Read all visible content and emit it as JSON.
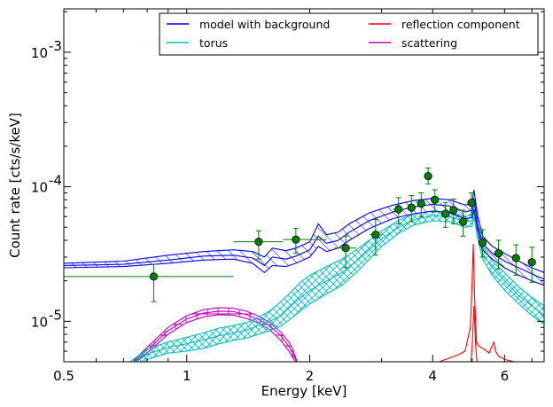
{
  "chart_data": {
    "type": "line",
    "xlabel": "Energy [keV]",
    "ylabel": "Count rate [cts/s/keV]",
    "xscale": "log",
    "yscale": "log",
    "xlim": [
      0.5,
      7.5
    ],
    "ylim": [
      5e-06,
      0.0021
    ],
    "x_ticks": [
      {
        "value": 0.5,
        "label": "0.5"
      },
      {
        "value": 1,
        "label": "1"
      },
      {
        "value": 2,
        "label": "2"
      },
      {
        "value": 4,
        "label": "4"
      },
      {
        "value": 6,
        "label": "6"
      }
    ],
    "y_ticks": [
      {
        "value": 1e-05,
        "base": "10",
        "exp": "-5"
      },
      {
        "value": 0.0001,
        "base": "10",
        "exp": "-4"
      },
      {
        "value": 0.001,
        "base": "10",
        "exp": "-3"
      }
    ],
    "legend": {
      "placement": "top-right",
      "columns": 2,
      "entries": [
        {
          "label": "model with background",
          "color": "#0000ff"
        },
        {
          "label": "reflection component",
          "color": "#ff0000"
        },
        {
          "label": "torus",
          "color": "#00bfbf"
        },
        {
          "label": "scattering",
          "color": "#bf00bf"
        }
      ]
    },
    "data_points": {
      "color": "#008000",
      "points": [
        {
          "x": 0.83,
          "xlo": 0.5,
          "xhi": 1.3,
          "y": 2.15e-05,
          "ylo": 1.4e-05,
          "yhi": 2.65e-05
        },
        {
          "x": 1.5,
          "xlo": 1.3,
          "xhi": 1.72,
          "y": 3.9e-05,
          "ylo": 2.9e-05,
          "yhi": 4.7e-05
        },
        {
          "x": 1.85,
          "xlo": 1.72,
          "xhi": 2.2,
          "y": 4.05e-05,
          "ylo": 3.2e-05,
          "yhi": 4.9e-05
        },
        {
          "x": 2.45,
          "xlo": 2.3,
          "xhi": 2.6,
          "y": 3.5e-05,
          "ylo": 2.5e-05,
          "yhi": 4.3e-05
        },
        {
          "x": 2.9,
          "xlo": 2.8,
          "xhi": 3.0,
          "y": 4.4e-05,
          "ylo": 3.1e-05,
          "yhi": 5.7e-05
        },
        {
          "x": 3.3,
          "xlo": 3.2,
          "xhi": 3.4,
          "y": 6.8e-05,
          "ylo": 5.3e-05,
          "yhi": 8.3e-05
        },
        {
          "x": 3.55,
          "xlo": 3.48,
          "xhi": 3.62,
          "y": 7e-05,
          "ylo": 5.5e-05,
          "yhi": 8.6e-05
        },
        {
          "x": 3.75,
          "xlo": 3.68,
          "xhi": 3.82,
          "y": 7.5e-05,
          "ylo": 6e-05,
          "yhi": 9e-05
        },
        {
          "x": 3.9,
          "xlo": 3.85,
          "xhi": 3.95,
          "y": 0.00012,
          "ylo": 0.000105,
          "yhi": 0.000138
        },
        {
          "x": 4.05,
          "xlo": 4.0,
          "xhi": 4.1,
          "y": 8e-05,
          "ylo": 6.5e-05,
          "yhi": 9.5e-05
        },
        {
          "x": 4.3,
          "xlo": 4.2,
          "xhi": 4.4,
          "y": 6.3e-05,
          "ylo": 5e-05,
          "yhi": 7.6e-05
        },
        {
          "x": 4.5,
          "xlo": 4.45,
          "xhi": 4.55,
          "y": 6.7e-05,
          "ylo": 5.3e-05,
          "yhi": 8.1e-05
        },
        {
          "x": 4.75,
          "xlo": 4.68,
          "xhi": 4.82,
          "y": 5.5e-05,
          "ylo": 4.3e-05,
          "yhi": 6.7e-05
        },
        {
          "x": 4.98,
          "xlo": 4.93,
          "xhi": 5.03,
          "y": 7.6e-05,
          "ylo": 6.2e-05,
          "yhi": 9e-05
        },
        {
          "x": 5.3,
          "xlo": 5.2,
          "xhi": 5.4,
          "y": 3.85e-05,
          "ylo": 3e-05,
          "yhi": 4.8e-05
        },
        {
          "x": 5.8,
          "xlo": 5.65,
          "xhi": 5.95,
          "y": 3.2e-05,
          "ylo": 2.45e-05,
          "yhi": 4e-05
        },
        {
          "x": 6.4,
          "xlo": 6.25,
          "xhi": 6.55,
          "y": 2.95e-05,
          "ylo": 2.2e-05,
          "yhi": 3.7e-05
        },
        {
          "x": 7.0,
          "xlo": 6.85,
          "xhi": 7.15,
          "y": 2.75e-05,
          "ylo": 1.95e-05,
          "yhi": 3.55e-05
        }
      ]
    },
    "series": [
      {
        "name": "model with background",
        "color": "#0000ff",
        "band": true,
        "x": [
          0.5,
          0.7,
          0.9,
          1.1,
          1.3,
          1.45,
          1.55,
          1.62,
          1.75,
          1.85,
          2.0,
          2.1,
          2.2,
          2.35,
          2.5,
          2.8,
          3.2,
          3.6,
          4.0,
          4.4,
          4.8,
          5.0,
          5.05,
          5.15,
          5.3,
          5.6,
          6.0,
          6.5,
          7.0,
          7.5
        ],
        "y_lo": [
          2.5e-05,
          2.55e-05,
          2.7e-05,
          2.85e-05,
          2.9e-05,
          2.7e-05,
          2.3e-05,
          2.6e-05,
          2.55e-05,
          2.7e-05,
          3e-05,
          3.6e-05,
          3.3e-05,
          3.5e-05,
          4e-05,
          4.9e-05,
          5.8e-05,
          6.3e-05,
          6.6e-05,
          6.4e-05,
          5.8e-05,
          5.9e-05,
          6.8e-05,
          4.8e-05,
          3.4e-05,
          2.9e-05,
          2.5e-05,
          2.2e-05,
          2e-05,
          1.85e-05
        ],
        "y_mid": [
          2.6e-05,
          2.65e-05,
          2.85e-05,
          3.05e-05,
          3.1e-05,
          2.95e-05,
          2.6e-05,
          3e-05,
          2.9e-05,
          3.05e-05,
          3.4e-05,
          4.3e-05,
          3.8e-05,
          4e-05,
          4.6e-05,
          5.6e-05,
          6.5e-05,
          7.1e-05,
          7.4e-05,
          7.2e-05,
          6.5e-05,
          6.7e-05,
          8.2e-05,
          5.4e-05,
          3.8e-05,
          3.2e-05,
          2.8e-05,
          2.5e-05,
          2.25e-05,
          2.05e-05
        ],
        "y_hi": [
          2.7e-05,
          2.8e-05,
          3.1e-05,
          3.3e-05,
          3.4e-05,
          3.3e-05,
          3e-05,
          3.5e-05,
          3.35e-05,
          3.5e-05,
          3.9e-05,
          5.3e-05,
          4.4e-05,
          4.6e-05,
          5.3e-05,
          6.4e-05,
          7.3e-05,
          7.9e-05,
          8.2e-05,
          8e-05,
          7.3e-05,
          7.6e-05,
          9.5e-05,
          6.2e-05,
          4.3e-05,
          3.6e-05,
          3.2e-05,
          2.8e-05,
          2.5e-05,
          2.3e-05
        ]
      },
      {
        "name": "torus",
        "color": "#00bfbf",
        "band": true,
        "x": [
          0.7,
          0.8,
          0.9,
          1.0,
          1.1,
          1.2,
          1.3,
          1.4,
          1.5,
          1.6,
          1.7,
          1.8,
          1.9,
          2.0,
          2.2,
          2.4,
          2.6,
          2.8,
          3.0,
          3.3,
          3.6,
          4.0,
          4.4,
          4.8,
          5.0,
          5.05,
          5.15,
          5.3,
          5.6,
          6.0,
          6.5,
          7.0,
          7.5
        ],
        "y_lo": [
          4e-06,
          5.2e-06,
          5.8e-06,
          6e-06,
          6.3e-06,
          6.8e-06,
          7.2e-06,
          7.5e-06,
          8e-06,
          8.5e-06,
          9.2e-06,
          1.05e-05,
          1.2e-05,
          1.35e-05,
          1.6e-05,
          1.85e-05,
          2.3e-05,
          2.9e-05,
          3.6e-05,
          4.5e-05,
          5.2e-05,
          5.6e-05,
          5.5e-05,
          5e-05,
          5.1e-05,
          6e-05,
          4.2e-05,
          2.9e-05,
          2.2e-05,
          1.7e-05,
          1.35e-05,
          1.1e-05,
          9.5e-06
        ],
        "y_mid": [
          4.3e-06,
          5.7e-06,
          6.4e-06,
          6.8e-06,
          7.3e-06,
          7.8e-06,
          8.2e-06,
          8.6e-06,
          9.3e-06,
          1e-05,
          1.1e-05,
          1.3e-05,
          1.5e-05,
          1.7e-05,
          2e-05,
          2.3e-05,
          2.8e-05,
          3.4e-05,
          4.1e-05,
          5e-05,
          5.7e-05,
          6.1e-05,
          6e-05,
          5.5e-05,
          5.6e-05,
          6.7e-05,
          4.7e-05,
          3.2e-05,
          2.5e-05,
          2e-05,
          1.55e-05,
          1.3e-05,
          1.1e-05
        ],
        "y_hi": [
          4.6e-06,
          6.2e-06,
          7e-06,
          7.6e-06,
          8.2e-06,
          8.9e-06,
          9.3e-06,
          9.8e-06,
          1.07e-05,
          1.2e-05,
          1.4e-05,
          1.65e-05,
          1.95e-05,
          2.2e-05,
          2.55e-05,
          2.9e-05,
          3.4e-05,
          4e-05,
          4.7e-05,
          5.6e-05,
          6.3e-05,
          6.6e-05,
          6.5e-05,
          6e-05,
          6.2e-05,
          7.5e-05,
          5.2e-05,
          3.6e-05,
          2.8e-05,
          2.3e-05,
          1.8e-05,
          1.5e-05,
          1.3e-05
        ]
      },
      {
        "name": "scattering",
        "color": "#bf00bf",
        "band": true,
        "x": [
          0.74,
          0.8,
          0.9,
          1.0,
          1.1,
          1.2,
          1.3,
          1.4,
          1.5,
          1.6,
          1.7,
          1.78,
          1.82,
          1.86
        ],
        "y_lo": [
          4.9e-06,
          5.8e-06,
          8e-06,
          9.8e-06,
          1.08e-05,
          1.12e-05,
          1.11e-05,
          1.05e-05,
          9.7e-06,
          8.6e-06,
          7.2e-06,
          6e-06,
          5.3e-06,
          4.9e-06
        ],
        "y_mid": [
          5e-06,
          6.1e-06,
          8.5e-06,
          1.04e-05,
          1.15e-05,
          1.19e-05,
          1.18e-05,
          1.12e-05,
          1.03e-05,
          9.2e-06,
          7.8e-06,
          6.5e-06,
          5.7e-06,
          5e-06
        ],
        "y_hi": [
          5.1e-06,
          6.4e-06,
          9e-06,
          1.1e-05,
          1.22e-05,
          1.26e-05,
          1.25e-05,
          1.19e-05,
          1.09e-05,
          9.8e-06,
          8.3e-06,
          7e-06,
          6.1e-06,
          5.1e-06
        ]
      },
      {
        "name": "reflection component",
        "color": "#ff0000",
        "band": false,
        "lines": [
          {
            "x": [
              4.0,
              4.3,
              4.6,
              4.8,
              4.95,
              5.0,
              5.03,
              5.07,
              5.12,
              5.2,
              5.35,
              5.5,
              5.6,
              5.65,
              5.7,
              5.8,
              6.0,
              6.5,
              7.0,
              7.5
            ],
            "y": [
              4.8e-06,
              5.2e-06,
              5.6e-06,
              6e-06,
              9e-06,
              2e-05,
              3.75e-05,
              1.5e-05,
              7e-06,
              6.5e-06,
              6.2e-06,
              5.8e-06,
              6.6e-06,
              7e-06,
              6e-06,
              5.5e-06,
              5.2e-06,
              4.9e-06,
              4.7e-06,
              4.6e-06
            ]
          },
          {
            "x": [
              4.95,
              5.0,
              5.05,
              5.1,
              5.15
            ],
            "y": [
              4.5e-06,
              6.5e-06,
              1.3e-05,
              6.5e-06,
              4.5e-06
            ]
          }
        ]
      }
    ]
  }
}
